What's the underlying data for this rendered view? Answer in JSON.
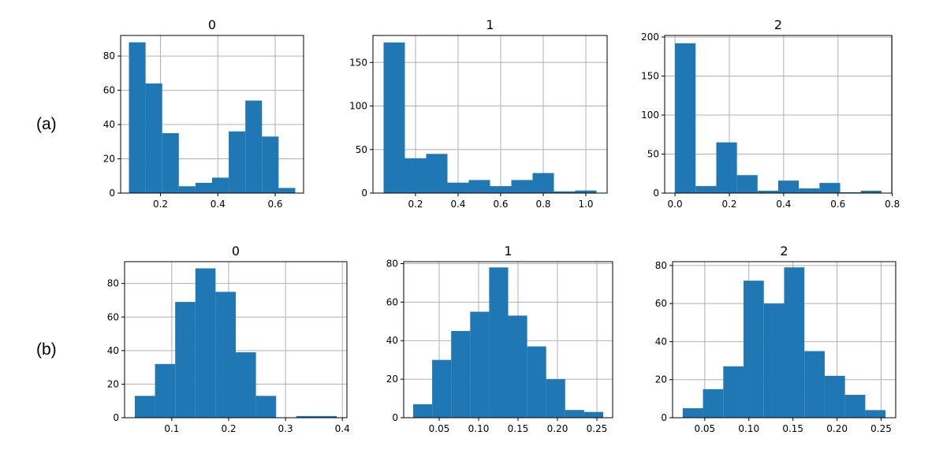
{
  "row_labels": [
    "(a)",
    "(b)"
  ],
  "colors": {
    "bar": "#1f77b4",
    "grid": "#b0b0b0"
  },
  "chart_data": [
    {
      "type": "bar",
      "row": "(a)",
      "title": "0",
      "grid": true,
      "bin_edges": [
        0.09,
        0.148,
        0.206,
        0.264,
        0.322,
        0.38,
        0.438,
        0.496,
        0.554,
        0.612,
        0.67
      ],
      "values": [
        88,
        64,
        35,
        4,
        6,
        9,
        36,
        54,
        33,
        3
      ],
      "xlim": [
        0.061,
        0.699
      ],
      "ylim": [
        0,
        92
      ],
      "xticks": [
        0.2,
        0.4,
        0.6
      ],
      "xticklabels": [
        "0.2",
        "0.4",
        "0.6"
      ],
      "yticks": [
        0,
        20,
        40,
        60,
        80
      ],
      "yticklabels": [
        "0",
        "20",
        "40",
        "60",
        "80"
      ]
    },
    {
      "type": "bar",
      "row": "(a)",
      "title": "1",
      "grid": true,
      "bin_edges": [
        0.05,
        0.15,
        0.25,
        0.35,
        0.45,
        0.55,
        0.65,
        0.75,
        0.85,
        0.95,
        1.05
      ],
      "values": [
        173,
        40,
        45,
        12,
        15,
        8,
        15,
        23,
        2,
        3
      ],
      "xlim": [
        0.0,
        1.1
      ],
      "ylim": [
        0,
        181
      ],
      "xticks": [
        0.2,
        0.4,
        0.6,
        0.8,
        1.0
      ],
      "xticklabels": [
        "0.2",
        "0.4",
        "0.6",
        "0.8",
        "1.0"
      ],
      "yticks": [
        0,
        50,
        100,
        150
      ],
      "yticklabels": [
        "0",
        "50",
        "100",
        "150"
      ]
    },
    {
      "type": "bar",
      "row": "(a)",
      "title": "2",
      "grid": true,
      "bin_edges": [
        0.0,
        0.076,
        0.152,
        0.228,
        0.304,
        0.38,
        0.456,
        0.532,
        0.608,
        0.684,
        0.76
      ],
      "values": [
        192,
        9,
        65,
        23,
        3,
        16,
        6,
        13,
        1,
        3
      ],
      "xlim": [
        -0.038,
        0.798
      ],
      "ylim": [
        0,
        202
      ],
      "xticks": [
        0.0,
        0.2,
        0.4,
        0.6,
        0.8
      ],
      "xticklabels": [
        "0.0",
        "0.2",
        "0.4",
        "0.6",
        "0.8"
      ],
      "yticks": [
        0,
        50,
        100,
        150,
        200
      ],
      "yticklabels": [
        "0",
        "50",
        "100",
        "150",
        "200"
      ]
    },
    {
      "type": "bar",
      "row": "(b)",
      "title": "0",
      "grid": true,
      "bin_edges": [
        0.035,
        0.0705,
        0.106,
        0.1415,
        0.177,
        0.2125,
        0.248,
        0.2835,
        0.319,
        0.3545,
        0.39
      ],
      "values": [
        13,
        32,
        69,
        89,
        75,
        39,
        13,
        0,
        1,
        1
      ],
      "xlim": [
        0.017,
        0.408
      ],
      "ylim": [
        0,
        93
      ],
      "xticks": [
        0.1,
        0.2,
        0.3,
        0.4
      ],
      "xticklabels": [
        "0.1",
        "0.2",
        "0.3",
        "0.4"
      ],
      "yticks": [
        0,
        20,
        40,
        60,
        80
      ],
      "yticklabels": [
        "0",
        "20",
        "40",
        "60",
        "80"
      ]
    },
    {
      "type": "bar",
      "row": "(b)",
      "title": "1",
      "grid": true,
      "bin_edges": [
        0.017,
        0.0411,
        0.0652,
        0.0893,
        0.1134,
        0.1375,
        0.1616,
        0.1857,
        0.2098,
        0.2339,
        0.258
      ],
      "values": [
        7,
        30,
        45,
        55,
        78,
        53,
        37,
        20,
        4,
        3
      ],
      "xlim": [
        0.005,
        0.27
      ],
      "ylim": [
        0,
        81
      ],
      "xticks": [
        0.05,
        0.1,
        0.15,
        0.2,
        0.25
      ],
      "xticklabels": [
        "0.05",
        "0.10",
        "0.15",
        "0.20",
        "0.25"
      ],
      "yticks": [
        0,
        20,
        40,
        60,
        80
      ],
      "yticklabels": [
        "0",
        "20",
        "40",
        "60",
        "80"
      ]
    },
    {
      "type": "bar",
      "row": "(b)",
      "title": "2",
      "grid": true,
      "bin_edges": [
        0.025,
        0.048,
        0.071,
        0.094,
        0.117,
        0.14,
        0.163,
        0.186,
        0.209,
        0.232,
        0.255
      ],
      "values": [
        5,
        15,
        27,
        72,
        60,
        79,
        35,
        22,
        12,
        4
      ],
      "xlim": [
        0.0135,
        0.2665
      ],
      "ylim": [
        0,
        82
      ],
      "xticks": [
        0.05,
        0.1,
        0.15,
        0.2,
        0.25
      ],
      "xticklabels": [
        "0.05",
        "0.10",
        "0.15",
        "0.20",
        "0.25"
      ],
      "yticks": [
        0,
        20,
        40,
        60,
        80
      ],
      "yticklabels": [
        "0",
        "20",
        "40",
        "60",
        "80"
      ]
    }
  ]
}
